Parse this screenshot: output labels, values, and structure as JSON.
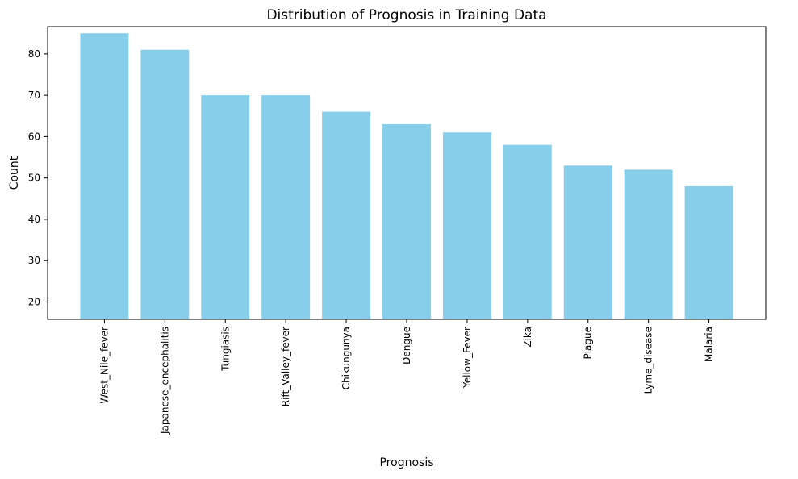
{
  "chart_data": {
    "type": "bar",
    "title": "Distribution of Prognosis in Training Data",
    "xlabel": "Prognosis",
    "ylabel": "Count",
    "categories": [
      "West_Nile_fever",
      "Japanese_encephalitis",
      "Tungiasis",
      "Rift_Valley_fever",
      "Chikungunya",
      "Dengue",
      "Yellow_Fever",
      "Zika",
      "Plague",
      "Lyme_disease",
      "Malaria"
    ],
    "values": [
      85,
      81,
      70,
      70,
      66,
      63,
      61,
      58,
      53,
      52,
      48
    ],
    "ylim": [
      15.8,
      86.6
    ],
    "yticks": [
      20,
      30,
      40,
      50,
      60,
      70,
      80
    ],
    "bar_color": "#87CEEB",
    "grid": false,
    "legend": "none"
  }
}
